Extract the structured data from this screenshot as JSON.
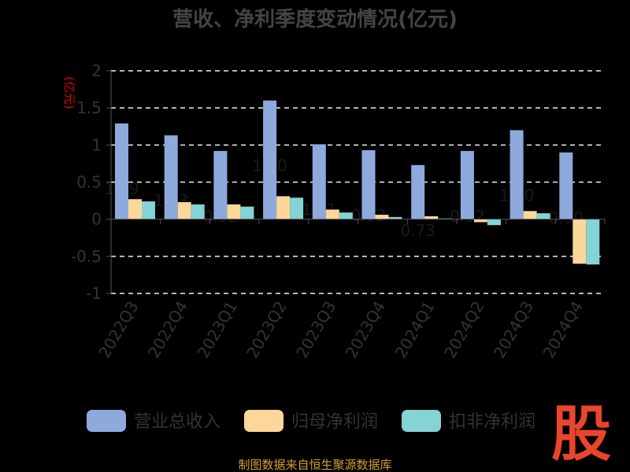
{
  "chart_data": {
    "type": "bar",
    "title": "营收、净利季度变动情况(亿元)",
    "unit_label": "(亿元)",
    "categories": [
      "2022Q3",
      "2022Q4",
      "2023Q1",
      "2023Q2",
      "2023Q3",
      "2023Q4",
      "2024Q1",
      "2024Q2",
      "2024Q3",
      "2024Q4"
    ],
    "series": [
      {
        "name": "营业总收入",
        "color": "#8eaadc",
        "values": [
          1.29,
          1.13,
          0.92,
          1.6,
          1.01,
          0.93,
          0.73,
          0.92,
          1.2,
          0.9
        ]
      },
      {
        "name": "归母净利润",
        "color": "#fdd79a",
        "values": [
          0.27,
          0.23,
          0.2,
          0.31,
          0.13,
          0.06,
          0.04,
          -0.04,
          0.11,
          -0.6
        ]
      },
      {
        "name": "扣非净利润",
        "color": "#84d3d6",
        "values": [
          0.24,
          0.2,
          0.17,
          0.29,
          0.09,
          0.03,
          0.01,
          -0.08,
          0.08,
          -0.61
        ]
      }
    ],
    "data_labels": [
      "1.29",
      "1.13",
      "0.92",
      "1.60",
      "1.01",
      "0.93",
      "0.73",
      "0.92",
      "1.20",
      "0.90"
    ],
    "yticks": [
      "2",
      "1.5",
      "1",
      "0.5",
      "0",
      "-0.5",
      "-1"
    ],
    "ytick_values": [
      2,
      1.5,
      1,
      0.5,
      0,
      -0.5,
      -1
    ],
    "ylim": [
      -1,
      2
    ],
    "grid": true,
    "legend_position": "bottom"
  },
  "source_text": "制图数据来自恒生聚源数据库",
  "logo_text": "股"
}
